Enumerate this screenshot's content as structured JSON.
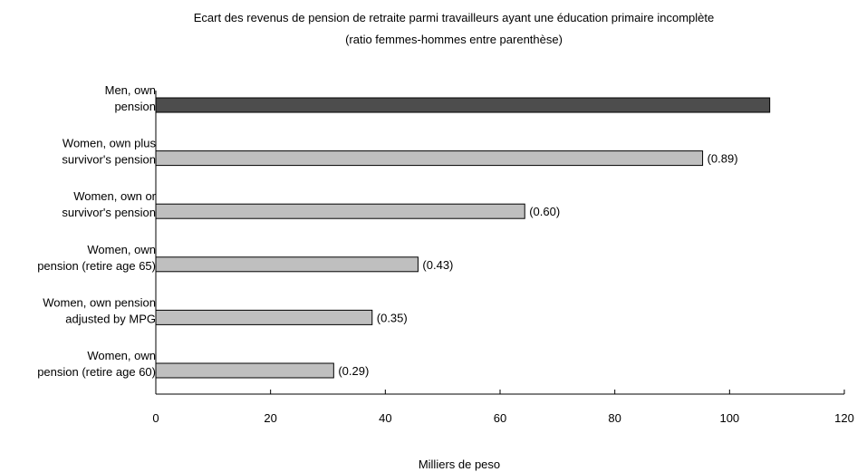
{
  "chart_data": {
    "type": "bar",
    "orientation": "horizontal",
    "title": "Ecart des revenus de pension de retraite parmi travailleurs ayant une éducation primaire incomplète",
    "subtitle": "(ratio femmes-hommes entre parenthèse)",
    "xlabel": "Milliers de peso",
    "ylabel": "",
    "xlim": [
      0,
      120
    ],
    "xticks": [
      0,
      20,
      40,
      60,
      80,
      100,
      120
    ],
    "grid": false,
    "categories": [
      [
        "Men, own",
        "pension"
      ],
      [
        "Women, own plus",
        "survivor's pension"
      ],
      [
        "Women, own or",
        "survivor's pension"
      ],
      [
        "Women, own",
        "pension (retire age 65)"
      ],
      [
        "Women, own pension",
        "adjusted by MPG"
      ],
      [
        "Women, own",
        "pension (retire age 60)"
      ]
    ],
    "values": [
      107,
      95.3,
      64.3,
      45.7,
      37.7,
      31
    ],
    "ratios": [
      "",
      "(0.89)",
      "(0.60)",
      "(0.43)",
      "(0.35)",
      "(0.29)"
    ],
    "colors": [
      "#4d4d4d",
      "#bfbfbf",
      "#bfbfbf",
      "#bfbfbf",
      "#bfbfbf",
      "#bfbfbf"
    ],
    "edge_color": "#000000"
  }
}
